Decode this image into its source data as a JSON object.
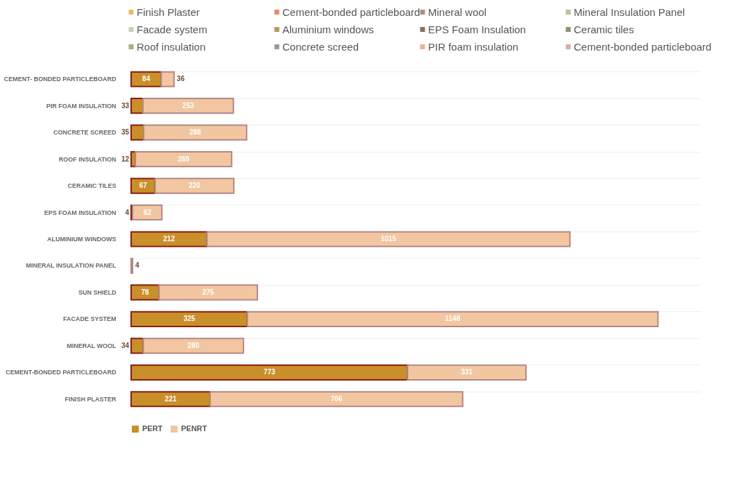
{
  "chart_data": [
    {
      "type": "other",
      "categories": [
        "Finish Plaster",
        "Cement-bonded particleboard",
        "Mineral wool",
        "Mineral Insulation Panel",
        "Facade system",
        "Aluminium  windows",
        "EPS Foam Insulation",
        "Ceramic tiles",
        "Roof insulation",
        "Concrete screed",
        "PIR foam insulation",
        "Cement-bonded particleboard"
      ],
      "colors": [
        "#e8a020",
        "#c8602a",
        "#8a6050",
        "#a8a070",
        "#a8c0a0",
        "#a06a20",
        "#5a3020",
        "#606040",
        "#7a9040",
        "#607a60",
        "#e89060",
        "#c09080"
      ]
    },
    {
      "type": "bar",
      "orientation": "horizontal",
      "stacked": true,
      "grid": "y",
      "legend": "bottom",
      "categories": [
        "CEMENT- BONDED PARTICLEBOARD",
        "PIR FOAM INSULATION",
        "CONCRETE SCREED",
        "ROOF INSULATION",
        "CERAMIC TILES",
        "EPS FOAM INSULATION",
        "ALUMINIUM WINDOWS",
        "MINERAL INSULATION PANEL",
        "SUN SHIELD",
        "FACADE SYSTEM",
        "MINERAL WOOL",
        "CEMENT-BONDED PARTICLEBOARD",
        "FINISH PLASTER"
      ],
      "series": [
        {
          "name": "PERT",
          "color": "#c98f2a",
          "values": [
            84,
            33,
            35,
            12,
            67,
            4,
            212,
            null,
            78,
            325,
            34,
            773,
            221
          ],
          "value_labels": [
            "84",
            "33",
            "35",
            "12",
            "67",
            "4",
            "212",
            null,
            "78",
            "325",
            "34",
            "773",
            "221"
          ]
        },
        {
          "name": "PENRT",
          "color": "#f2c6a0",
          "values": [
            36,
            253,
            288,
            269,
            220,
            82,
            1015,
            4,
            275,
            1148,
            280,
            331,
            706
          ],
          "value_labels": [
            "36",
            "253",
            "288",
            "269",
            "220",
            "82",
            "1015",
            "4",
            "275",
            "1148",
            "280",
            "331",
            "706"
          ]
        }
      ]
    }
  ]
}
